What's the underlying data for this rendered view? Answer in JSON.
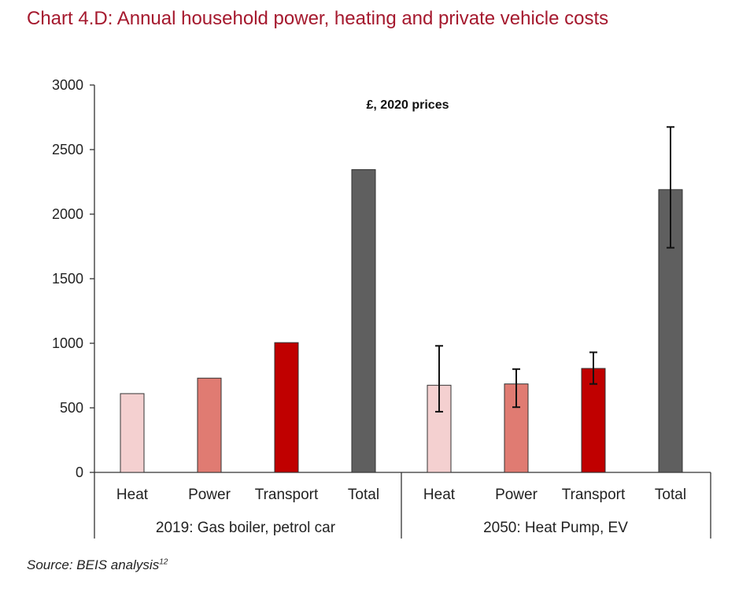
{
  "title": "Chart 4.D: Annual household power, heating and private vehicle costs",
  "source": {
    "text": "Source: BEIS analysis",
    "superscript": "12"
  },
  "chart_data": {
    "type": "bar",
    "units": "£, 2020 prices",
    "ylim": [
      0,
      3000
    ],
    "yticks": [
      0,
      500,
      1000,
      1500,
      2000,
      2500,
      3000
    ],
    "grid": false,
    "legend": "none",
    "groups": [
      {
        "label": "2019: Gas boiler, petrol car",
        "bars": [
          {
            "category": "Heat",
            "value": 610,
            "color": "#f4d0d0"
          },
          {
            "category": "Power",
            "value": 730,
            "color": "#e07b72"
          },
          {
            "category": "Transport",
            "value": 1005,
            "color": "#c00000"
          },
          {
            "category": "Total",
            "value": 2345,
            "color": "#5f5f5f"
          }
        ]
      },
      {
        "label": "2050: Heat Pump, EV",
        "bars": [
          {
            "category": "Heat",
            "value": 675,
            "error_low": 470,
            "error_high": 980,
            "color": "#f4d0d0"
          },
          {
            "category": "Power",
            "value": 685,
            "error_low": 505,
            "error_high": 800,
            "color": "#e07b72"
          },
          {
            "category": "Transport",
            "value": 805,
            "error_low": 685,
            "error_high": 930,
            "color": "#c00000"
          },
          {
            "category": "Total",
            "value": 2190,
            "error_low": 1740,
            "error_high": 2675,
            "color": "#5f5f5f"
          }
        ]
      }
    ]
  }
}
